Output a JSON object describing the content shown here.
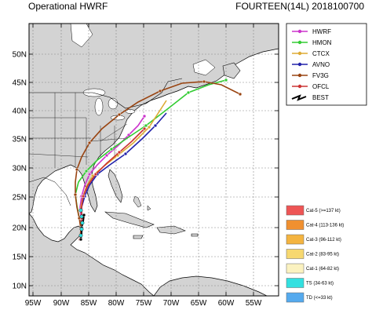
{
  "header": {
    "left_title": "Operational HWRF",
    "right_title": "FOURTEEN(14L) 2018100700"
  },
  "axes": {
    "lat_labels": [
      "50N",
      "45N",
      "40N",
      "35N",
      "30N",
      "25N",
      "20N",
      "15N",
      "10N"
    ],
    "lon_labels": [
      "95W",
      "90W",
      "85W",
      "80W",
      "75W",
      "70W",
      "65W",
      "60W",
      "55W"
    ]
  },
  "legend": {
    "models": [
      {
        "label": "HWRF",
        "color": "#cc33cc"
      },
      {
        "label": "HMON",
        "color": "#33cc33"
      },
      {
        "label": "CTCX",
        "color": "#ddaa33"
      },
      {
        "label": "AVNO",
        "color": "#2222aa"
      },
      {
        "label": "FV3G",
        "color": "#994411"
      },
      {
        "label": "OFCL",
        "color": "#cc3333"
      },
      {
        "label": "BEST",
        "color": "#000000"
      }
    ],
    "categories": [
      {
        "label": "Cat-5 (>=137 kt)",
        "color": "#ee5555"
      },
      {
        "label": "Cat-4 (113-136 kt)",
        "color": "#f09030"
      },
      {
        "label": "Cat-3 (96-112 kt)",
        "color": "#f4b440"
      },
      {
        "label": "Cat-2 (83-95 kt)",
        "color": "#f7d870"
      },
      {
        "label": "Cat-1 (64-82 kt)",
        "color": "#fbf2c0"
      },
      {
        "label": "TS (34-63 kt)",
        "color": "#33e0e0"
      },
      {
        "label": "TD (<=33 kt)",
        "color": "#55aaee"
      }
    ]
  }
}
